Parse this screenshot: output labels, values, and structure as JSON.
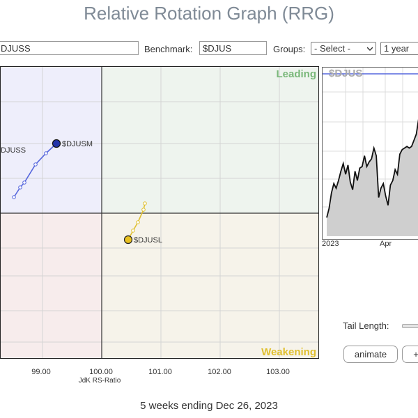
{
  "title": "Relative Rotation Graph (RRG)",
  "controls": {
    "symbols_value": "DJUSS",
    "benchmark_label": "Benchmark:",
    "benchmark_value": "$DJUS",
    "groups_label": "Groups:",
    "groups_selected": "- Select -",
    "period_selected": "1 year"
  },
  "rrg": {
    "quadrants": {
      "leading": "Leading",
      "weakening": "Weakening"
    },
    "colors": {
      "leading": "#7ab87a",
      "weakening": "#e0c030",
      "leading_bg": "#eef4ee",
      "weakening_bg": "#f6f3ea",
      "lagging_bg": "#f7ecec",
      "improving_bg": "#eeeefb"
    },
    "x_axis": {
      "label": "JdK RS-Ratio",
      "ticks": [
        "99.00",
        "100.00",
        "101.00",
        "102.00",
        "103.00"
      ]
    },
    "series": [
      {
        "name": "DJUSS",
        "color": "#5566dd"
      },
      {
        "name": "$DJUSM",
        "color": "#5566dd"
      },
      {
        "name": "$DJUSL",
        "color": "#e0c030"
      }
    ]
  },
  "mini_chart": {
    "symbol": "$DJUS",
    "x_ticks": [
      "2023",
      "Apr"
    ],
    "values": [
      0.12,
      0.18,
      0.28,
      0.34,
      0.31,
      0.36,
      0.42,
      0.47,
      0.4,
      0.46,
      0.35,
      0.3,
      0.42,
      0.36,
      0.44,
      0.45,
      0.52,
      0.45,
      0.48,
      0.5,
      0.57,
      0.52,
      0.25,
      0.31,
      0.34,
      0.26,
      0.2,
      0.33,
      0.36,
      0.43,
      0.4,
      0.53,
      0.56,
      0.57,
      0.58,
      0.57,
      0.58,
      0.62,
      0.66,
      0.76
    ]
  },
  "tail_length_label": "Tail Length:",
  "buttons": {
    "animate": "animate",
    "plus": "+"
  },
  "footer": "5 weeks ending Dec 26, 2023"
}
